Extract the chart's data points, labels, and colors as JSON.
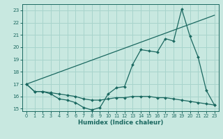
{
  "xlabel": "Humidex (Indice chaleur)",
  "bg_color": "#c8e8e0",
  "grid_color": "#a8d4cc",
  "line_color": "#1a6860",
  "ylim": [
    14.8,
    23.5
  ],
  "xlim": [
    -0.5,
    23.5
  ],
  "yticks": [
    15,
    16,
    17,
    18,
    19,
    20,
    21,
    22,
    23
  ],
  "xticks": [
    0,
    1,
    2,
    3,
    4,
    5,
    6,
    7,
    8,
    9,
    10,
    11,
    12,
    13,
    14,
    15,
    16,
    17,
    18,
    19,
    20,
    21,
    22,
    23
  ],
  "line1_x": [
    0,
    23
  ],
  "line1_y": [
    17.0,
    22.6
  ],
  "line2_x": [
    0,
    1,
    2,
    3,
    4,
    5,
    6,
    7,
    8,
    9,
    10,
    11,
    12,
    13,
    14,
    15,
    16,
    17,
    18,
    19,
    20,
    21,
    22,
    23
  ],
  "line2_y": [
    17.0,
    16.4,
    16.4,
    16.2,
    15.8,
    15.7,
    15.5,
    15.1,
    14.9,
    15.1,
    16.2,
    16.7,
    16.8,
    18.6,
    19.8,
    19.7,
    19.6,
    20.7,
    20.5,
    23.1,
    20.9,
    19.2,
    16.5,
    15.3
  ],
  "line3_x": [
    0,
    1,
    2,
    3,
    4,
    5,
    6,
    7,
    8,
    9,
    10,
    11,
    12,
    13,
    14,
    15,
    16,
    17,
    18,
    19,
    20,
    21,
    22,
    23
  ],
  "line3_y": [
    17.0,
    16.4,
    16.4,
    16.3,
    16.2,
    16.1,
    16.0,
    15.8,
    15.7,
    15.7,
    15.8,
    15.9,
    15.9,
    16.0,
    16.0,
    16.0,
    15.9,
    15.9,
    15.8,
    15.7,
    15.6,
    15.5,
    15.4,
    15.3
  ]
}
